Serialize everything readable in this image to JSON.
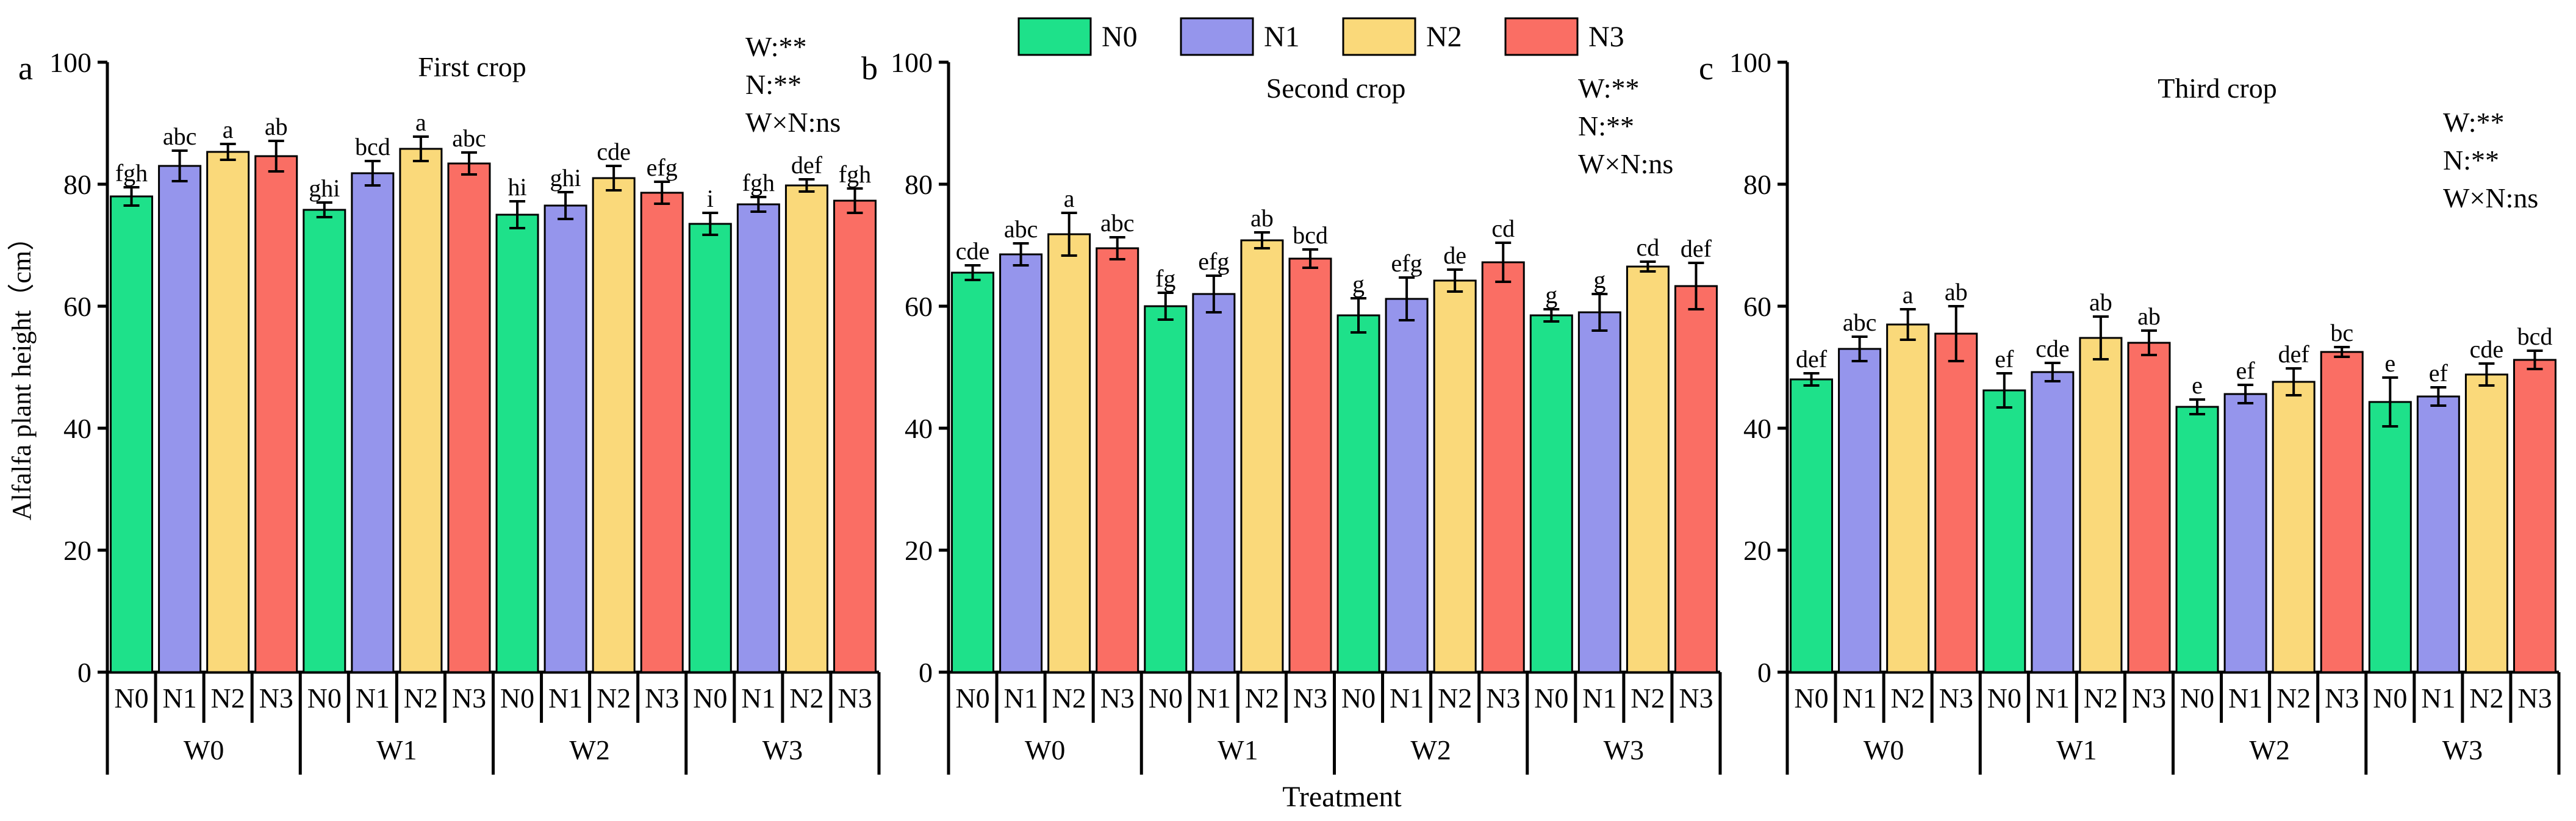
{
  "legend": [
    {
      "label": "N0",
      "color": "#1ee18a"
    },
    {
      "label": "N1",
      "color": "#9595ec"
    },
    {
      "label": "N2",
      "color": "#fad97a"
    },
    {
      "label": "N3",
      "color": "#fa6e64"
    }
  ],
  "shared": {
    "ylabel": "Alfalfa plant height（cm）",
    "xlabel": "Treatment",
    "ylim": [
      0,
      100
    ],
    "yticks": [
      0,
      20,
      40,
      60,
      80,
      100
    ],
    "groups": [
      "W0",
      "W1",
      "W2",
      "W3"
    ],
    "subcategories": [
      "N0",
      "N1",
      "N2",
      "N3"
    ]
  },
  "chart_data": [
    {
      "type": "bar",
      "panel": "a",
      "title": "First crop",
      "stats": [
        "W:**",
        "N:**",
        "W×N:ns"
      ],
      "xlabel": "Treatment",
      "ylabel": "Alfalfa plant height（cm）",
      "ylim": [
        0,
        100
      ],
      "categories": [
        "W0",
        "W1",
        "W2",
        "W3"
      ],
      "series": [
        {
          "name": "N0",
          "values": [
            78.0,
            75.8,
            75.0,
            73.5
          ],
          "errors": [
            1.5,
            1.2,
            2.2,
            1.8
          ],
          "letters": [
            "fgh",
            "ghi",
            "hi",
            "i"
          ]
        },
        {
          "name": "N1",
          "values": [
            83.0,
            81.8,
            76.5,
            76.7
          ],
          "errors": [
            2.5,
            2.0,
            2.2,
            1.2
          ],
          "letters": [
            "abc",
            "bcd",
            "ghi",
            "fgh"
          ]
        },
        {
          "name": "N2",
          "values": [
            85.3,
            85.8,
            81.0,
            79.8
          ],
          "errors": [
            1.3,
            2.0,
            2.0,
            1.0
          ],
          "letters": [
            "a",
            "a",
            "cde",
            "def"
          ]
        },
        {
          "name": "N3",
          "values": [
            84.6,
            83.4,
            78.6,
            77.3
          ],
          "errors": [
            2.5,
            1.8,
            1.8,
            2.0
          ],
          "letters": [
            "ab",
            "abc",
            "efg",
            "fgh"
          ]
        }
      ]
    },
    {
      "type": "bar",
      "panel": "b",
      "title": "Second crop",
      "stats": [
        "W:**",
        "N:**",
        "W×N:ns"
      ],
      "xlabel": "Treatment",
      "ylabel": "Alfalfa plant height（cm）",
      "ylim": [
        0,
        100
      ],
      "categories": [
        "W0",
        "W1",
        "W2",
        "W3"
      ],
      "series": [
        {
          "name": "N0",
          "values": [
            65.5,
            60.0,
            58.5,
            58.5
          ],
          "errors": [
            1.2,
            2.2,
            2.8,
            1.0
          ],
          "letters": [
            "cde",
            "fg",
            "g",
            "g"
          ]
        },
        {
          "name": "N1",
          "values": [
            68.5,
            62.0,
            61.2,
            59.0
          ],
          "errors": [
            1.8,
            3.0,
            3.5,
            3.0
          ],
          "letters": [
            "abc",
            "efg",
            "efg",
            "g"
          ]
        },
        {
          "name": "N2",
          "values": [
            71.8,
            70.8,
            64.2,
            66.5
          ],
          "errors": [
            3.5,
            1.3,
            1.8,
            0.8
          ],
          "letters": [
            "a",
            "ab",
            "de",
            "cd"
          ]
        },
        {
          "name": "N3",
          "values": [
            69.5,
            67.8,
            67.2,
            63.3
          ],
          "errors": [
            1.8,
            1.5,
            3.2,
            3.8
          ],
          "letters": [
            "abc",
            "bcd",
            "cd",
            "def"
          ]
        }
      ]
    },
    {
      "type": "bar",
      "panel": "c",
      "title": "Third crop",
      "stats": [
        "W:**",
        "N:**",
        "W×N:ns"
      ],
      "xlabel": "Treatment",
      "ylabel": "Alfalfa plant height（cm）",
      "ylim": [
        0,
        100
      ],
      "categories": [
        "W0",
        "W1",
        "W2",
        "W3"
      ],
      "series": [
        {
          "name": "N0",
          "values": [
            48.0,
            46.2,
            43.5,
            44.3
          ],
          "errors": [
            1.0,
            2.8,
            1.2,
            4.0
          ],
          "letters": [
            "def",
            "ef",
            "e",
            "e"
          ]
        },
        {
          "name": "N1",
          "values": [
            53.0,
            49.2,
            45.6,
            45.2
          ],
          "errors": [
            2.0,
            1.5,
            1.5,
            1.5
          ],
          "letters": [
            "abc",
            "cde",
            "ef",
            "ef"
          ]
        },
        {
          "name": "N2",
          "values": [
            57.0,
            54.8,
            47.6,
            48.8
          ],
          "errors": [
            2.5,
            3.5,
            2.2,
            1.8
          ],
          "letters": [
            "a",
            "ab",
            "def",
            "cde"
          ]
        },
        {
          "name": "N3",
          "values": [
            55.5,
            54.0,
            52.5,
            51.2
          ],
          "errors": [
            4.5,
            2.0,
            0.8,
            1.5
          ],
          "letters": [
            "ab",
            "ab",
            "bc",
            "bcd"
          ]
        }
      ]
    }
  ]
}
